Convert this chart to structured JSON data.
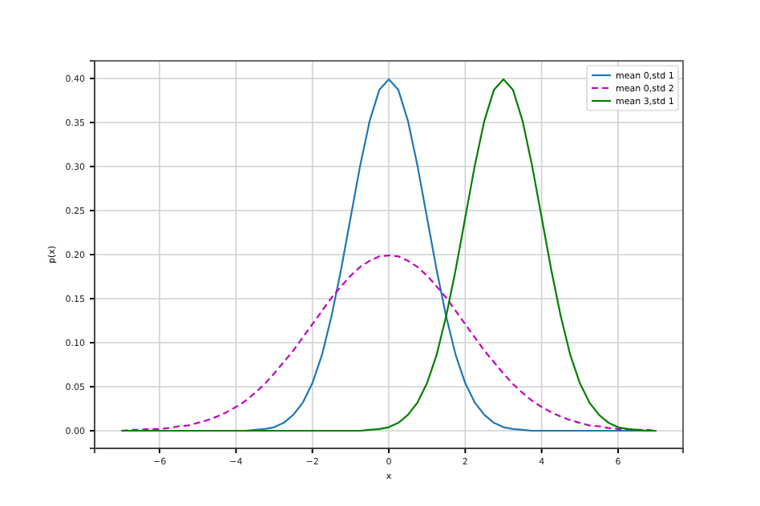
{
  "chart_data": {
    "type": "line",
    "xlabel": "x",
    "ylabel": "p(x)",
    "x": [
      -7,
      -6.75,
      -6.5,
      -6.25,
      -6,
      -5.75,
      -5.5,
      -5.25,
      -5,
      -4.75,
      -4.5,
      -4.25,
      -4,
      -3.75,
      -3.5,
      -3.25,
      -3,
      -2.75,
      -2.5,
      -2.25,
      -2,
      -1.75,
      -1.5,
      -1.25,
      -1,
      -0.75,
      -0.5,
      -0.25,
      0,
      0.25,
      0.5,
      0.75,
      1,
      1.25,
      1.5,
      1.75,
      2,
      2.25,
      2.5,
      2.75,
      3,
      3.25,
      3.5,
      3.75,
      4,
      4.25,
      4.5,
      4.75,
      5,
      5.25,
      5.5,
      5.75,
      6,
      6.25,
      6.5,
      6.75,
      7
    ],
    "series": [
      {
        "name": "mean 0,std 1",
        "color": "#1f77b4",
        "line_style": "solid",
        "values": [
          null,
          null,
          null,
          null,
          null,
          null,
          null,
          null,
          null,
          null,
          null,
          null,
          0,
          0,
          0.001,
          0.002,
          0.004,
          0.009,
          0.018,
          0.032,
          0.054,
          0.086,
          0.13,
          0.183,
          0.242,
          0.301,
          0.352,
          0.387,
          0.399,
          0.387,
          0.352,
          0.301,
          0.242,
          0.183,
          0.13,
          0.086,
          0.054,
          0.032,
          0.018,
          0.009,
          0.004,
          0.002,
          0.001,
          0,
          0,
          0,
          0,
          0,
          0,
          0,
          0,
          0,
          0,
          0,
          0,
          0,
          0
        ]
      },
      {
        "name": "mean 0,std 2",
        "color": "#bf00bf",
        "line_style": "dashed",
        "values": [
          0,
          0.001,
          0.001,
          0.002,
          0.002,
          0.003,
          0.005,
          0.006,
          0.009,
          0.012,
          0.016,
          0.021,
          0.027,
          0.034,
          0.043,
          0.053,
          0.065,
          0.078,
          0.091,
          0.106,
          0.121,
          0.136,
          0.151,
          0.164,
          0.176,
          0.186,
          0.193,
          0.198,
          0.199,
          0.198,
          0.193,
          0.186,
          0.176,
          0.164,
          0.151,
          0.136,
          0.121,
          0.106,
          0.091,
          0.078,
          0.065,
          0.053,
          0.043,
          0.034,
          0.027,
          0.021,
          0.016,
          0.012,
          0.009,
          0.006,
          0.005,
          0.003,
          0.002,
          0.002,
          0.001,
          0.001,
          0
        ]
      },
      {
        "name": "mean 3,std 1",
        "color": "#008000",
        "line_style": "solid",
        "values": [
          0,
          0,
          0,
          0,
          0,
          0,
          0,
          0,
          0,
          0,
          0,
          0,
          0,
          0,
          0,
          0,
          0,
          0,
          0,
          0,
          0,
          0,
          0,
          0,
          0,
          0,
          0.001,
          0.002,
          0.004,
          0.009,
          0.018,
          0.032,
          0.054,
          0.086,
          0.13,
          0.183,
          0.242,
          0.301,
          0.352,
          0.387,
          0.399,
          0.387,
          0.352,
          0.301,
          0.242,
          0.183,
          0.13,
          0.086,
          0.054,
          0.032,
          0.018,
          0.009,
          0.004,
          0.002,
          0.001,
          0,
          0
        ]
      }
    ],
    "xlim": [
      -7.7,
      7.7
    ],
    "ylim": [
      -0.02,
      0.42
    ],
    "xticks": [
      {
        "value": -6,
        "label": "−6"
      },
      {
        "value": -4,
        "label": "−4"
      },
      {
        "value": -2,
        "label": "−2"
      },
      0,
      2,
      4,
      6
    ],
    "yticks": [
      {
        "value": 0,
        "label": "0.00"
      },
      {
        "value": 0.05,
        "label": "0.05"
      },
      {
        "value": 0.1,
        "label": "0.10"
      },
      {
        "value": 0.15,
        "label": "0.15"
      },
      {
        "value": 0.2,
        "label": "0.20"
      },
      {
        "value": 0.25,
        "label": "0.25"
      },
      {
        "value": 0.3,
        "label": "0.30"
      },
      {
        "value": 0.35,
        "label": "0.35"
      },
      {
        "value": 0.4,
        "label": "0.40"
      }
    ],
    "grid": true,
    "legend": "top right",
    "marker": "none"
  }
}
